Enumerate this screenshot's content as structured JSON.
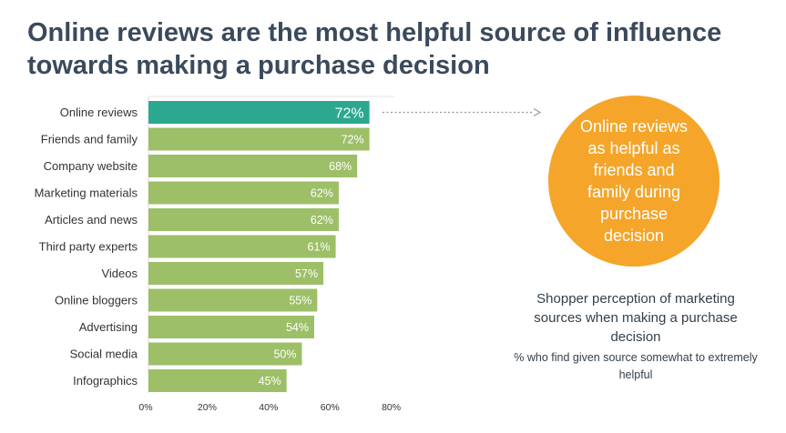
{
  "title": "Online reviews are the most helpful source of influence towards making a purchase decision",
  "callout": {
    "text": "Online reviews as helpful as friends and family during purchase decision",
    "color": "#f5a52a"
  },
  "caption": {
    "main": "Shopper perception of marketing sources when making a purchase decision",
    "sub": "% who find given source somewhat to extremely helpful"
  },
  "colors": {
    "highlight": "#2ba88f",
    "bar": "#9dbf68",
    "title": "#3b4a5b",
    "arrow": "#999999"
  },
  "chart_data": {
    "type": "bar",
    "orientation": "horizontal",
    "categories": [
      "Online reviews",
      "Friends and family",
      "Company website",
      "Marketing materials",
      "Articles and news",
      "Third party experts",
      "Videos",
      "Online bloggers",
      "Advertising",
      "Social media",
      "Infographics"
    ],
    "values": [
      72,
      72,
      68,
      62,
      62,
      61,
      57,
      55,
      54,
      50,
      45
    ],
    "labels": [
      "72%",
      "72%",
      "68%",
      "62%",
      "62%",
      "61%",
      "57%",
      "55%",
      "54%",
      "50%",
      "45%"
    ],
    "highlight_index": 0,
    "xlim": [
      0,
      80
    ],
    "xticks": [
      0,
      20,
      40,
      60,
      80
    ],
    "xtick_labels": [
      "0%",
      "20%",
      "40%",
      "60%",
      "80%"
    ],
    "xlabel": "",
    "ylabel": "",
    "grid": false
  }
}
